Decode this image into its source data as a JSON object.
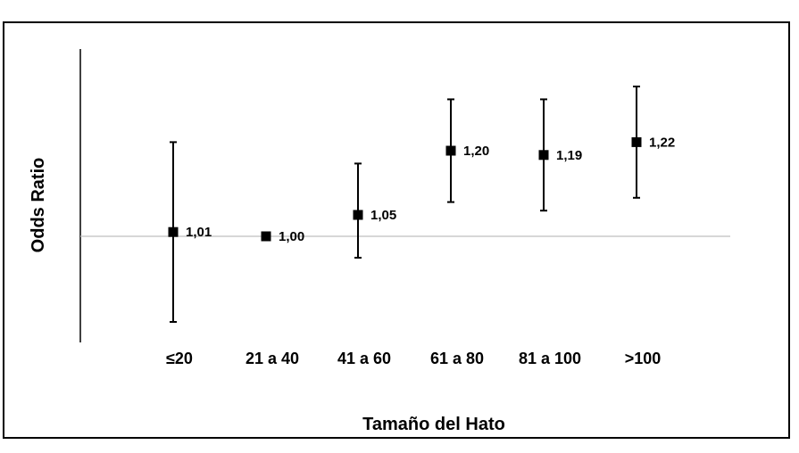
{
  "chart_data": {
    "type": "scatter",
    "title": "",
    "xlabel": "Tamaño del Hato",
    "ylabel": "Odds Ratio",
    "categories": [
      "≤20",
      "21 a 40",
      "41 a 60",
      "61 a 80",
      "81 a 100",
      ">100"
    ],
    "series": [
      {
        "values": [
          1.01,
          1.0,
          1.05,
          1.2,
          1.19,
          1.22
        ],
        "lower": [
          0.8,
          1.0,
          0.95,
          1.08,
          1.06,
          1.09
        ],
        "upper": [
          1.22,
          1.0,
          1.17,
          1.32,
          1.32,
          1.35
        ],
        "labels": [
          "1,01",
          "1,00",
          "1,05",
          "1,20",
          "1,19",
          "1,22"
        ]
      }
    ],
    "reference_line": 1.0,
    "ylim": [
      0.75,
      1.45
    ],
    "grid": false,
    "marker": "square",
    "colors": {
      "marker": "#000000",
      "errorbar": "#000000",
      "reference": "#bfbfbf"
    }
  }
}
